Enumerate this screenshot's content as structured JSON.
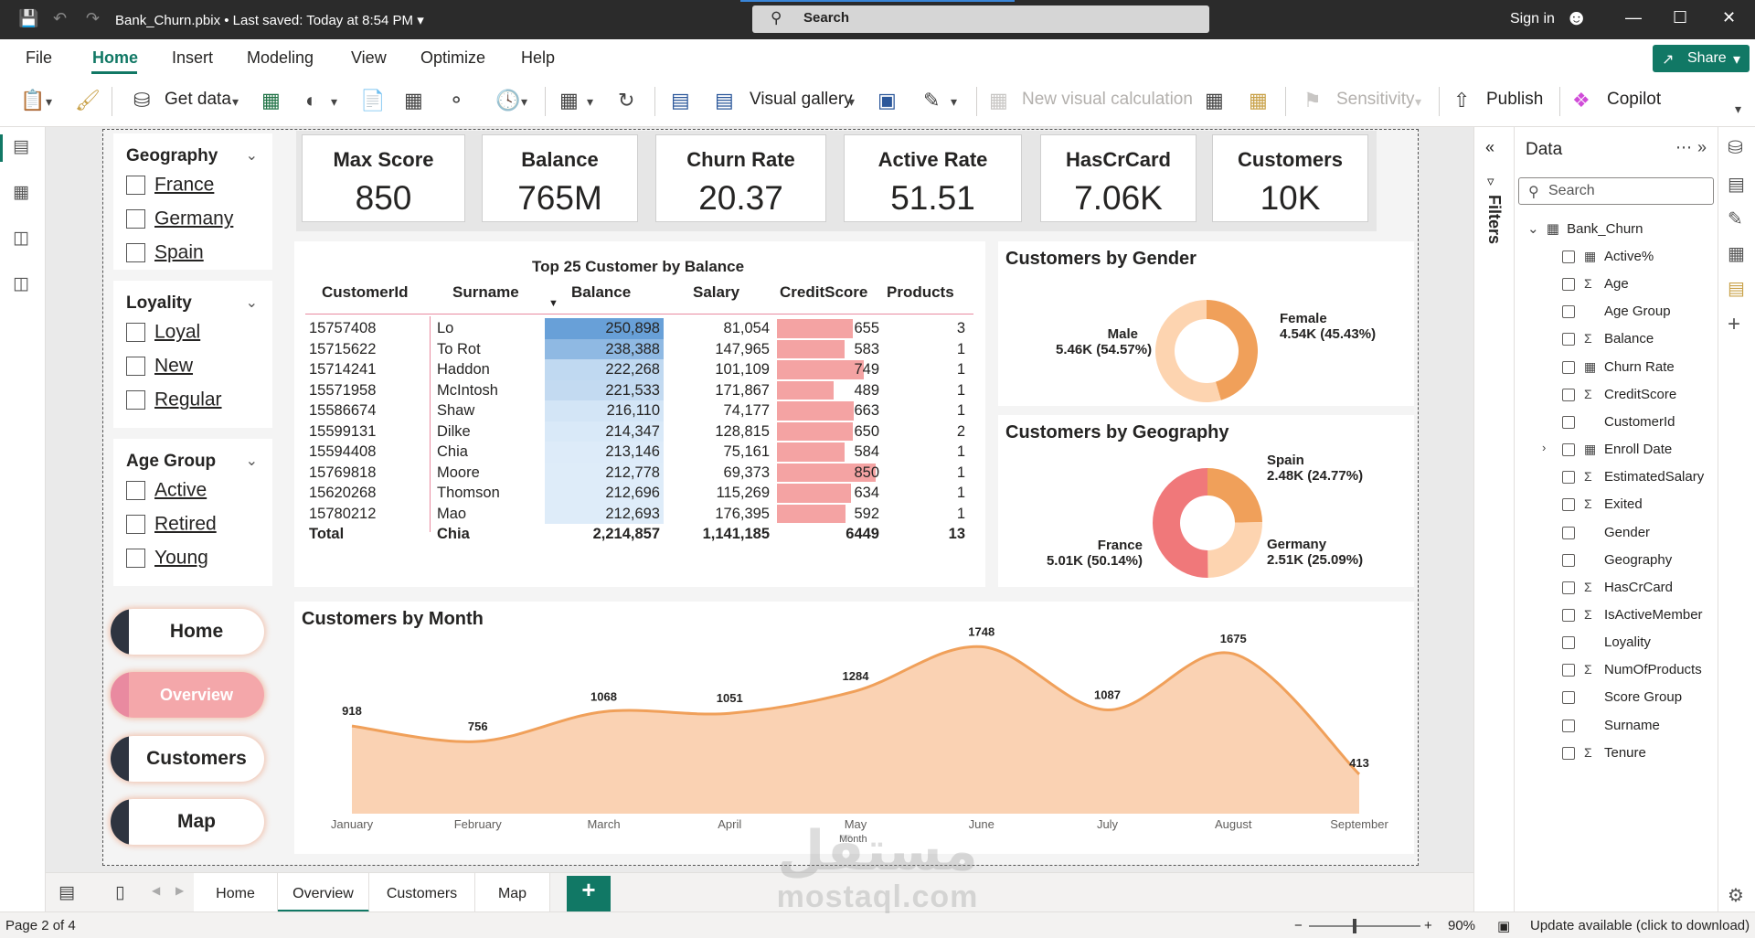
{
  "titlebar": {
    "doc_title": "Bank_Churn.pbix • Last saved: Today at 8:54 PM",
    "search_label": "Search",
    "signin": "Sign in"
  },
  "menu": {
    "items": [
      "File",
      "Home",
      "Insert",
      "Modeling",
      "View",
      "Optimize",
      "Help"
    ],
    "share": "Share"
  },
  "ribbon": {
    "get_data": "Get data",
    "visual_gallery": "Visual gallery",
    "new_visual_calc": "New visual calculation",
    "sensitivity": "Sensitivity",
    "publish": "Publish",
    "copilot": "Copilot"
  },
  "slicers": [
    {
      "title": "Geography",
      "options": [
        "France",
        "Germany",
        "Spain"
      ]
    },
    {
      "title": "Loyality",
      "options": [
        "Loyal",
        "New",
        "Regular"
      ]
    },
    {
      "title": "Age Group",
      "options": [
        "Active",
        "Retired",
        "Young"
      ]
    }
  ],
  "nav_buttons": [
    {
      "label": "Home",
      "active": false
    },
    {
      "label": "Overview",
      "active": true
    },
    {
      "label": "Customers",
      "active": false
    },
    {
      "label": "Map",
      "active": false
    }
  ],
  "kpis": [
    {
      "title": "Max Score",
      "value": "850"
    },
    {
      "title": "Balance",
      "value": "765M"
    },
    {
      "title": "Churn Rate",
      "value": "20.37"
    },
    {
      "title": "Active Rate",
      "value": "51.51"
    },
    {
      "title": "HasCrCard",
      "value": "7.06K"
    },
    {
      "title": "Customers",
      "value": "10K"
    }
  ],
  "table": {
    "title": "Top 25 Customer by Balance",
    "columns": [
      "CustomerId",
      "Surname",
      "Balance",
      "Salary",
      "CreditScore",
      "Products"
    ],
    "rows": [
      {
        "id": "15757408",
        "surname": "Lo",
        "balance": "250,898",
        "salary": "81,054",
        "score": "655",
        "products": "3"
      },
      {
        "id": "15715622",
        "surname": "To Rot",
        "balance": "238,388",
        "salary": "147,965",
        "score": "583",
        "products": "1"
      },
      {
        "id": "15714241",
        "surname": "Haddon",
        "balance": "222,268",
        "salary": "101,109",
        "score": "749",
        "products": "1"
      },
      {
        "id": "15571958",
        "surname": "McIntosh",
        "balance": "221,533",
        "salary": "171,867",
        "score": "489",
        "products": "1"
      },
      {
        "id": "15586674",
        "surname": "Shaw",
        "balance": "216,110",
        "salary": "74,177",
        "score": "663",
        "products": "1"
      },
      {
        "id": "15599131",
        "surname": "Dilke",
        "balance": "214,347",
        "salary": "128,815",
        "score": "650",
        "products": "2"
      },
      {
        "id": "15594408",
        "surname": "Chia",
        "balance": "213,146",
        "salary": "75,161",
        "score": "584",
        "products": "1"
      },
      {
        "id": "15769818",
        "surname": "Moore",
        "balance": "212,778",
        "salary": "69,373",
        "score": "850",
        "products": "1"
      },
      {
        "id": "15620268",
        "surname": "Thomson",
        "balance": "212,696",
        "salary": "115,269",
        "score": "634",
        "products": "1"
      },
      {
        "id": "15780212",
        "surname": "Mao",
        "balance": "212,693",
        "salary": "176,395",
        "score": "592",
        "products": "1"
      }
    ],
    "total": {
      "label": "Total",
      "surname": "Chia",
      "balance": "2,214,857",
      "salary": "1,141,185",
      "score": "6449",
      "products": "13"
    }
  },
  "charts": {
    "gender_title": "Customers by Gender",
    "geo_title": "Customers by Geography",
    "month_title": "Customers by Month"
  },
  "chart_data": [
    {
      "type": "pie",
      "title": "Customers by Gender",
      "donut": true,
      "slices": [
        {
          "name": "Female",
          "label": "4.54K (45.43%)",
          "value": 45.43,
          "color": "#f0a05a"
        },
        {
          "name": "Male",
          "label": "5.46K (54.57%)",
          "value": 54.57,
          "color": "#fdd4b0"
        }
      ]
    },
    {
      "type": "pie",
      "title": "Customers by Geography",
      "donut": true,
      "slices": [
        {
          "name": "Spain",
          "label": "2.48K (24.77%)",
          "value": 24.77,
          "color": "#f0a05a"
        },
        {
          "name": "Germany",
          "label": "2.51K (25.09%)",
          "value": 25.09,
          "color": "#fdd4b0"
        },
        {
          "name": "France",
          "label": "5.01K (50.14%)",
          "value": 50.14,
          "color": "#f0787a"
        }
      ]
    },
    {
      "type": "area",
      "title": "Customers by Month",
      "xlabel": "Month",
      "ylabel": "",
      "categories": [
        "January",
        "February",
        "March",
        "April",
        "May",
        "June",
        "July",
        "August",
        "September"
      ],
      "values": [
        918,
        756,
        1068,
        1051,
        1284,
        1748,
        1087,
        1675,
        413
      ],
      "ylim": [
        413,
        1748
      ],
      "fill_color": "#fad2b3",
      "line_color": "#f0a05a"
    }
  ],
  "filters_label": "Filters",
  "data_pane": {
    "title": "Data",
    "search_placeholder": "Search",
    "table_name": "Bank_Churn",
    "fields": [
      {
        "name": "Active%",
        "icon": "calc-icon"
      },
      {
        "name": "Age",
        "icon": "sigma-icon"
      },
      {
        "name": "Age Group",
        "icon": ""
      },
      {
        "name": "Balance",
        "icon": "sigma-icon"
      },
      {
        "name": "Churn Rate",
        "icon": "calc-icon"
      },
      {
        "name": "CreditScore",
        "icon": "sigma-icon"
      },
      {
        "name": "CustomerId",
        "icon": ""
      },
      {
        "name": "Enroll Date",
        "icon": "calendar-icon"
      },
      {
        "name": "EstimatedSalary",
        "icon": "sigma-icon"
      },
      {
        "name": "Exited",
        "icon": "sigma-icon"
      },
      {
        "name": "Gender",
        "icon": ""
      },
      {
        "name": "Geography",
        "icon": ""
      },
      {
        "name": "HasCrCard",
        "icon": "sigma-icon"
      },
      {
        "name": "IsActiveMember",
        "icon": "sigma-icon"
      },
      {
        "name": "Loyality",
        "icon": ""
      },
      {
        "name": "NumOfProducts",
        "icon": "sigma-icon"
      },
      {
        "name": "Score Group",
        "icon": ""
      },
      {
        "name": "Surname",
        "icon": ""
      },
      {
        "name": "Tenure",
        "icon": "sigma-icon"
      }
    ]
  },
  "page_tabs": [
    "Home",
    "Overview",
    "Customers",
    "Map"
  ],
  "active_page": "Overview",
  "status": {
    "page": "Page 2 of 4",
    "zoom": "90%",
    "update": "Update available (click to download)"
  },
  "watermark": {
    "arabic": "مستقل",
    "latin": "mostaql.com"
  }
}
